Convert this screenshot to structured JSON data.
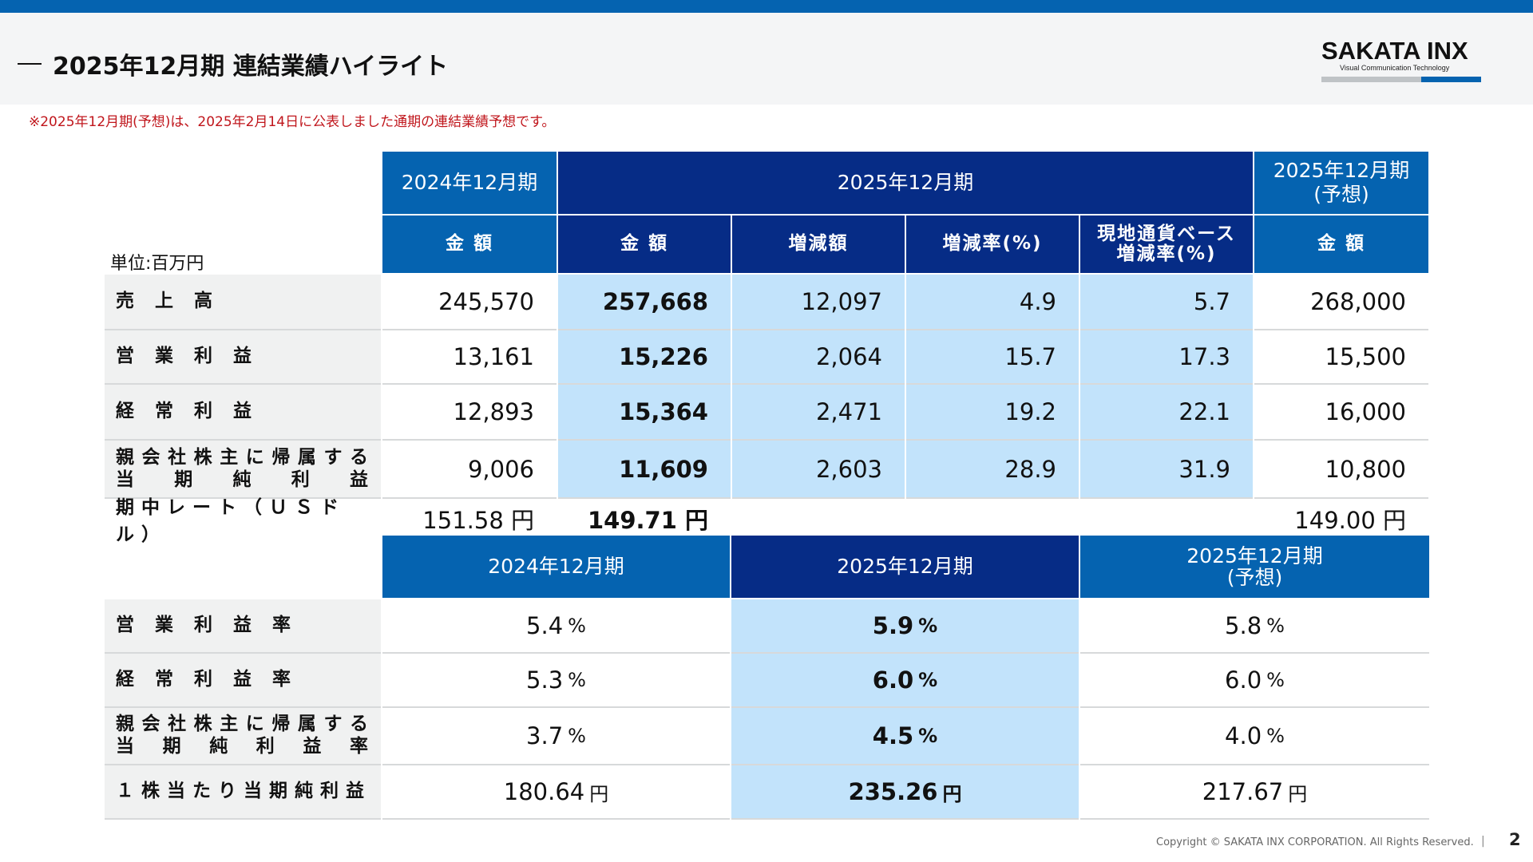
{
  "header": {
    "title": "2025年12月期 連結業績ハイライト",
    "logo": "SAKATA INX",
    "logo_tagline": "Visual Communication Technology"
  },
  "note": "※2025年12月期(予想)は、2025年2月14日に公表しました通期の連結業績予想です。",
  "colors": {
    "blue": "#0563b0",
    "navy": "#062c86",
    "highlight": "#c2e3fb",
    "note": "#c0161c"
  },
  "table1": {
    "unit": "単位:百万円",
    "headers": {
      "fy2024": "2024年12月期",
      "fy2025": "2025年12月期",
      "forecast": [
        "2025年12月期",
        "(予想)"
      ]
    },
    "subheaders": [
      "金 額",
      "金 額",
      "増減額",
      "増減率(%)",
      [
        "現地通貨ベース",
        "増減率(%)"
      ],
      "金 額"
    ],
    "rows": [
      {
        "label": [
          "売 上 高"
        ],
        "values": [
          "245,570",
          "257,668",
          "12,097",
          "4.9",
          "5.7",
          "268,000"
        ]
      },
      {
        "label": [
          "営 業 利 益"
        ],
        "values": [
          "13,161",
          "15,226",
          "2,064",
          "15.7",
          "17.3",
          "15,500"
        ]
      },
      {
        "label": [
          "経 常 利 益"
        ],
        "values": [
          "12,893",
          "15,364",
          "2,471",
          "19.2",
          "22.1",
          "16,000"
        ]
      },
      {
        "label": [
          "親会社株主に帰属する",
          "当期純利益"
        ],
        "values": [
          "9,006",
          "11,609",
          "2,603",
          "28.9",
          "31.9",
          "10,800"
        ]
      }
    ],
    "rate": {
      "label": "期中レート（ＵＳドル）",
      "fy2024": "151.58 円",
      "fy2025": "149.71 円",
      "forecast": "149.00 円"
    }
  },
  "table2": {
    "headers": [
      "2024年12月期",
      "2025年12月期",
      [
        "2025年12月期",
        "(予想)"
      ]
    ],
    "rows": [
      {
        "label": [
          "営 業 利 益 率"
        ],
        "values": [
          "5.4",
          "5.9",
          "5.8"
        ],
        "unit": "%"
      },
      {
        "label": [
          "経 常 利 益 率"
        ],
        "values": [
          "5.3",
          "6.0",
          "6.0"
        ],
        "unit": "%"
      },
      {
        "label": [
          "親会社株主に帰属する",
          "当期純利益率"
        ],
        "values": [
          "3.7",
          "4.5",
          "4.0"
        ],
        "unit": "%"
      },
      {
        "label": [
          "１株当たり当期純利益"
        ],
        "values": [
          "180.64",
          "235.26",
          "217.67"
        ],
        "unit": "円"
      }
    ]
  },
  "footer": {
    "copyright": "Copyright © SAKATA INX CORPORATION. All Rights Reserved.",
    "separator": "|",
    "page": "2"
  }
}
